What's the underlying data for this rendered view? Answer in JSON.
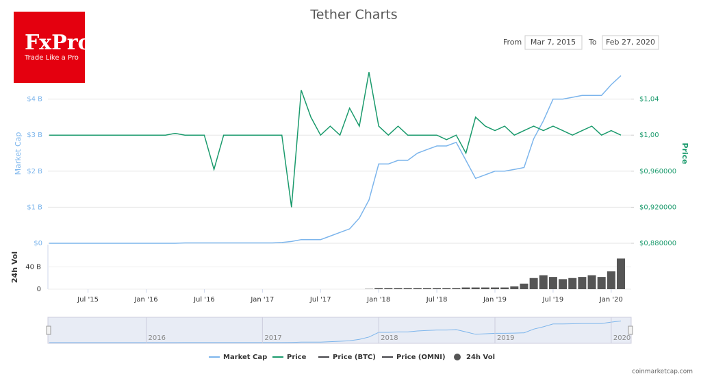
{
  "ad": {
    "brand": "FxPro",
    "slogan": "Trade Like a Pro"
  },
  "controls": {
    "from_label": "From",
    "from_value": "Mar 7, 2015",
    "to_label": "To",
    "to_value": "Feb 27, 2020"
  },
  "credit": "coinmarketcap.com",
  "chart_data": [
    {
      "type": "line",
      "title": "Tether Charts",
      "y_label": "Market Cap",
      "y2_label": "Price",
      "x": [
        "2015-03",
        "2015-04",
        "2015-05",
        "2015-06",
        "2015-07",
        "2015-08",
        "2015-09",
        "2015-10",
        "2015-11",
        "2015-12",
        "2016-01",
        "2016-02",
        "2016-03",
        "2016-04",
        "2016-05",
        "2016-06",
        "2016-07",
        "2016-08",
        "2016-09",
        "2016-10",
        "2016-11",
        "2016-12",
        "2017-01",
        "2017-02",
        "2017-03",
        "2017-04",
        "2017-05",
        "2017-06",
        "2017-07",
        "2017-08",
        "2017-09",
        "2017-10",
        "2017-11",
        "2017-12",
        "2018-01",
        "2018-02",
        "2018-03",
        "2018-04",
        "2018-05",
        "2018-06",
        "2018-07",
        "2018-08",
        "2018-09",
        "2018-10",
        "2018-11",
        "2018-12",
        "2019-01",
        "2019-02",
        "2019-03",
        "2019-04",
        "2019-05",
        "2019-06",
        "2019-07",
        "2019-08",
        "2019-09",
        "2019-10",
        "2019-11",
        "2019-12",
        "2020-01",
        "2020-02"
      ],
      "xlim": [
        "2015-03",
        "2020-02"
      ],
      "xticks": [
        {
          "value": "2015-07",
          "label": "Jul '15"
        },
        {
          "value": "2016-01",
          "label": "Jan '16"
        },
        {
          "value": "2016-07",
          "label": "Jul '16"
        },
        {
          "value": "2017-01",
          "label": "Jan '17"
        },
        {
          "value": "2017-07",
          "label": "Jul '17"
        },
        {
          "value": "2018-01",
          "label": "Jan '18"
        },
        {
          "value": "2018-07",
          "label": "Jul '18"
        },
        {
          "value": "2019-01",
          "label": "Jan '19"
        },
        {
          "value": "2019-07",
          "label": "Jul '19"
        },
        {
          "value": "2020-01",
          "label": "Jan '20"
        }
      ],
      "ylim": [
        0,
        5
      ],
      "yticks": [
        {
          "value": 0,
          "label": "$0"
        },
        {
          "value": 1,
          "label": "$1 B"
        },
        {
          "value": 2,
          "label": "$2 B"
        },
        {
          "value": 3,
          "label": "$3 B"
        },
        {
          "value": 4,
          "label": "$4 B"
        }
      ],
      "y2lim": [
        0.88,
        1.08
      ],
      "y2ticks": [
        {
          "value": 0.88,
          "label": "$0,880000"
        },
        {
          "value": 0.92,
          "label": "$0,920000"
        },
        {
          "value": 0.96,
          "label": "$0,960000"
        },
        {
          "value": 1.0,
          "label": "$1,00"
        },
        {
          "value": 1.04,
          "label": "$1,04"
        }
      ],
      "grid": true,
      "series": [
        {
          "name": "Market Cap",
          "color": "#7cb5ec",
          "values": [
            0,
            0,
            0,
            0,
            0,
            0,
            0,
            0,
            0,
            0,
            0,
            0,
            0,
            0,
            0.01,
            0.01,
            0.01,
            0.01,
            0.01,
            0.01,
            0.01,
            0.01,
            0.01,
            0.01,
            0.02,
            0.05,
            0.1,
            0.1,
            0.1,
            0.2,
            0.3,
            0.4,
            0.7,
            1.2,
            2.2,
            2.2,
            2.3,
            2.3,
            2.5,
            2.6,
            2.7,
            2.7,
            2.8,
            2.3,
            1.8,
            1.9,
            2.0,
            2.0,
            2.05,
            2.1,
            2.9,
            3.4,
            4.0,
            4.0,
            4.05,
            4.1,
            4.1,
            4.1,
            4.4,
            4.65
          ]
        },
        {
          "name": "Price",
          "color": "#1a9a6c",
          "axis": "y2",
          "values": [
            1,
            1,
            1,
            1,
            1,
            1,
            1,
            1,
            1,
            1,
            1,
            1,
            1,
            1.002,
            1,
            1,
            1,
            0.962,
            1,
            1,
            1,
            1,
            1,
            1,
            1,
            0.92,
            1.05,
            1.02,
            1.0,
            1.01,
            1.0,
            1.03,
            1.01,
            1.07,
            1.01,
            1.0,
            1.01,
            1.0,
            1.0,
            1.0,
            1.0,
            0.995,
            1.0,
            0.98,
            1.02,
            1.01,
            1.005,
            1.01,
            1.0,
            1.005,
            1.01,
            1.005,
            1.01,
            1.005,
            1.0,
            1.005,
            1.01,
            1.0,
            1.005,
            1.0
          ]
        }
      ],
      "legend_extra": [
        {
          "name": "Price (BTC)",
          "color": "#434348"
        },
        {
          "name": "Price (OMNI)",
          "color": "#434348"
        }
      ],
      "navigator_xticks": [
        {
          "value": "2016-01",
          "label": "2016"
        },
        {
          "value": "2017-01",
          "label": "2017"
        },
        {
          "value": "2018-01",
          "label": "2018"
        },
        {
          "value": "2019-01",
          "label": "2019"
        },
        {
          "value": "2020-01",
          "label": "2020"
        }
      ]
    },
    {
      "type": "bar",
      "y_label": "24h Vol",
      "ylim": [
        0,
        80
      ],
      "yticks": [
        0,
        {
          "value": 40,
          "label": "40 B"
        }
      ],
      "series": [
        {
          "name": "24h Vol",
          "color": "#555555",
          "values": [
            0,
            0,
            0,
            0,
            0,
            0,
            0,
            0,
            0,
            0,
            0,
            0,
            0,
            0,
            0,
            0,
            0,
            0,
            0,
            0,
            0,
            0,
            0,
            0,
            0,
            0,
            0,
            0,
            0,
            0,
            0,
            0,
            0,
            0.5,
            2,
            2,
            2,
            2,
            2,
            2,
            2,
            2,
            2,
            3,
            3,
            3,
            3,
            3,
            5,
            10,
            20,
            25,
            22,
            18,
            20,
            22,
            25,
            22,
            32,
            55
          ]
        }
      ]
    }
  ]
}
